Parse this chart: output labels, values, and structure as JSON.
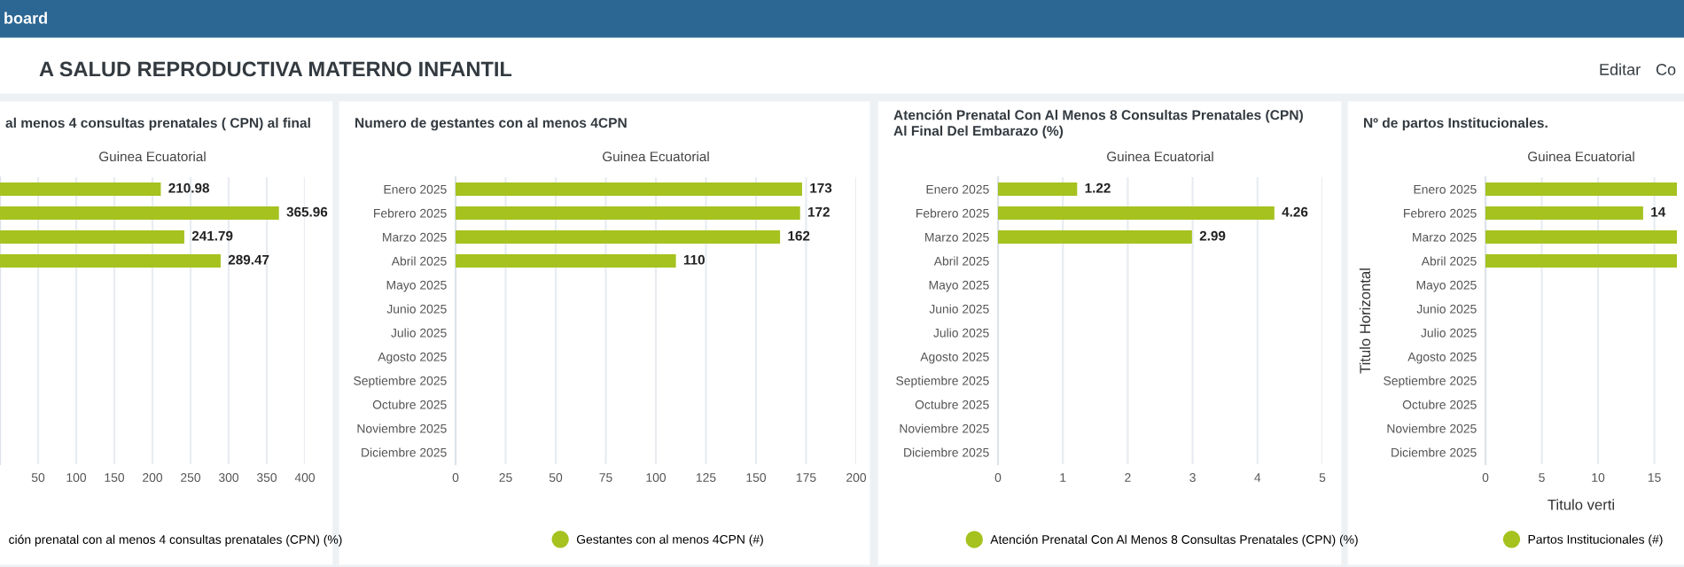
{
  "chart_data": [
    {
      "type": "other",
      "title": "A SALUD REPRODUCTIVA MATERNO INFANTIL",
      "annotations": [
        "board",
        "Editar",
        "Co"
      ]
    },
    {
      "type": "bar",
      "orientation": "horizontal",
      "title": "al menos 4 consultas prenatales ( CPN) al final",
      "subtitle": "Guinea Ecuatorial",
      "categories": [
        null,
        null,
        null,
        null,
        null,
        null,
        null,
        null,
        null,
        null,
        null,
        null
      ],
      "series": [
        {
          "name": "ción prenatal con al menos 4 consultas prenatales (CPN) (%)",
          "color": "#a5c21f",
          "values": [
            210.98,
            365.96,
            241.79,
            289.47,
            null,
            null,
            null,
            null,
            null,
            null,
            null,
            null
          ]
        }
      ],
      "xlim": [
        0,
        400
      ],
      "xticks": [
        {
          "value": 0,
          "label": null
        },
        50,
        100,
        150,
        200,
        250,
        300,
        350,
        400
      ],
      "grid": "x",
      "legend": "bottom",
      "data_labels": true
    },
    {
      "type": "bar",
      "orientation": "horizontal",
      "title": "Numero de gestantes con al menos 4CPN",
      "subtitle": "Guinea Ecuatorial",
      "categories": [
        "Enero 2025",
        "Febrero 2025",
        "Marzo 2025",
        "Abril 2025",
        "Mayo 2025",
        "Junio 2025",
        "Julio 2025",
        "Agosto 2025",
        "Septiembre 2025",
        "Octubre 2025",
        "Noviembre 2025",
        "Diciembre 2025"
      ],
      "series": [
        {
          "name": "Gestantes con al menos 4CPN (#)",
          "color": "#a5c21f",
          "values": [
            173,
            172,
            162,
            110,
            null,
            null,
            null,
            null,
            null,
            null,
            null,
            null
          ]
        }
      ],
      "xlim": [
        0,
        200
      ],
      "xticks": [
        0,
        25,
        50,
        75,
        100,
        125,
        150,
        175,
        200
      ],
      "grid": "x",
      "legend": "bottom",
      "data_labels": true
    },
    {
      "type": "bar",
      "orientation": "horizontal",
      "title": "Atención Prenatal Con Al Menos 8 Consultas Prenatales (CPN)\nAl Final Del Embarazo (%)",
      "subtitle": "Guinea Ecuatorial",
      "categories": [
        "Enero 2025",
        "Febrero 2025",
        "Marzo 2025",
        "Abril 2025",
        "Mayo 2025",
        "Junio 2025",
        "Julio 2025",
        "Agosto 2025",
        "Septiembre 2025",
        "Octubre 2025",
        "Noviembre 2025",
        "Diciembre 2025"
      ],
      "series": [
        {
          "name": "Atención Prenatal Con Al Menos 8 Consultas Prenatales (CPN) (%)",
          "color": "#a5c21f",
          "values": [
            1.22,
            4.26,
            2.99,
            null,
            null,
            null,
            null,
            null,
            null,
            null,
            null,
            null
          ]
        }
      ],
      "xlim": [
        0,
        5
      ],
      "xticks": [
        0,
        1,
        2,
        3,
        4,
        5
      ],
      "grid": "x",
      "legend": "bottom",
      "data_labels": true
    },
    {
      "type": "bar",
      "orientation": "horizontal",
      "title": "Nº de partos Institucionales.",
      "subtitle": "Guinea Ecuatorial",
      "xlabel": "Titulo verti",
      "ylabel": "Titulo Horizontal",
      "categories": [
        "Enero 2025",
        "Febrero 2025",
        "Marzo 2025",
        "Abril 2025",
        "Mayo 2025",
        "Junio 2025",
        "Julio 2025",
        "Agosto 2025",
        "Septiembre 2025",
        "Octubre 2025",
        "Noviembre 2025",
        "Diciembre 2025"
      ],
      "series": [
        {
          "name": "Partos Institucionales (#)",
          "color": "#a5c21f",
          "values": [
            17,
            14,
            17,
            17,
            null,
            null,
            null,
            null,
            null,
            null,
            null,
            null
          ],
          "value_labels": [
            null,
            "14",
            null,
            null,
            null,
            null,
            null,
            null,
            null,
            null,
            null,
            null
          ]
        }
      ],
      "xlim": [
        0,
        17
      ],
      "xticks": [
        0,
        5,
        10,
        15
      ],
      "grid": "x",
      "legend": "bottom"
    }
  ]
}
